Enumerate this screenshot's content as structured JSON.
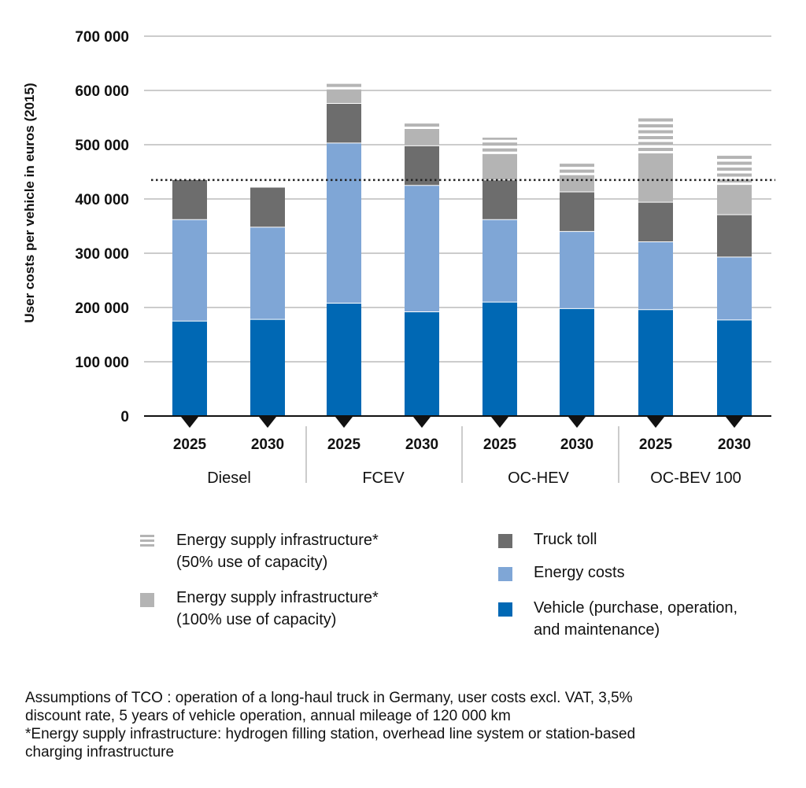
{
  "chart_data": {
    "type": "bar",
    "stacked": true,
    "ylabel": "User costs per vehicle in euros (2015)",
    "ylim": [
      0,
      700000
    ],
    "yticks": [
      0,
      100000,
      200000,
      300000,
      400000,
      500000,
      600000,
      700000
    ],
    "ytick_labels": [
      "0",
      "100 000",
      "200 000",
      "300 000",
      "400 000",
      "500 000",
      "600 000",
      "700 000"
    ],
    "groups": [
      "Diesel",
      "FCEV",
      "OC-HEV",
      "OC-BEV 100"
    ],
    "categories": [
      "2025",
      "2030",
      "2025",
      "2030",
      "2025",
      "2030",
      "2025",
      "2030"
    ],
    "grid": true,
    "reference_line": 435000,
    "colors": {
      "vehicle": "#0068b4",
      "energy": "#7fa6d6",
      "toll": "#6d6d6d",
      "infra100": "#b4b4b4",
      "infra50": "#b4b4b4"
    },
    "series": [
      {
        "key": "vehicle",
        "values": [
          175000,
          178000,
          208000,
          192000,
          210000,
          198000,
          196000,
          177000
        ]
      },
      {
        "key": "energy",
        "values": [
          187000,
          170000,
          295000,
          233000,
          152000,
          142000,
          125000,
          116000
        ]
      },
      {
        "key": "toll",
        "values": [
          73000,
          73000,
          73000,
          73000,
          73000,
          73000,
          73000,
          78000
        ]
      },
      {
        "key": "infra100",
        "values": [
          0,
          0,
          26000,
          31000,
          48000,
          31000,
          90000,
          55000
        ]
      },
      {
        "key": "infra50",
        "values": [
          0,
          0,
          13000,
          10000,
          30000,
          26000,
          65000,
          56000
        ]
      }
    ]
  },
  "legend": {
    "infra50_line1": "Energy supply infrastructure*",
    "infra50_line2": "(50% use of capacity)",
    "infra100_line1": "Energy supply infrastructure*",
    "infra100_line2": "(100% use of capacity)",
    "toll": "Truck toll",
    "energy": "Energy costs",
    "vehicle_line1": "Vehicle (purchase, operation,",
    "vehicle_line2": "and maintenance)"
  },
  "footnote": {
    "line1": "Assumptions of TCO : operation of a long-haul truck in Germany, user costs excl. VAT, 3,5%",
    "line2": "discount rate, 5 years of vehicle operation, annual mileage of 120 000 km",
    "line3": "*Energy supply infrastructure: hydrogen filling station, overhead line system or station-based",
    "line4": "charging infrastructure"
  }
}
